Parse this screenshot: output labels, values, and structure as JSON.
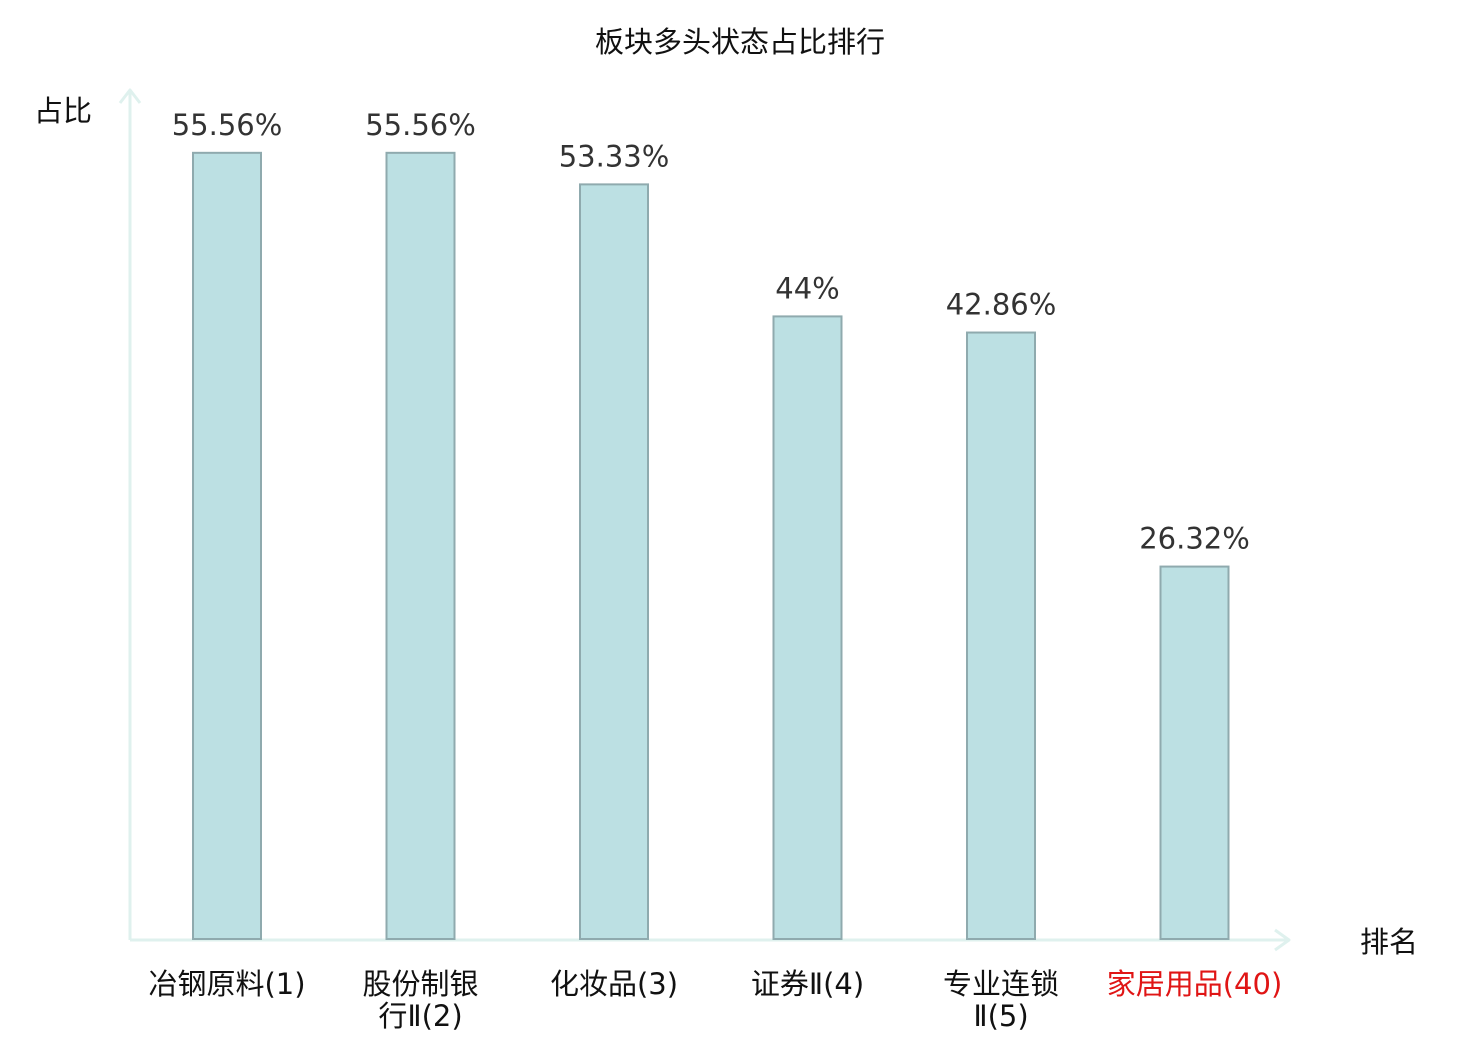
{
  "chart_data": {
    "type": "bar",
    "title": "板块多头状态占比排行",
    "xlabel": "排名",
    "ylabel": "占比",
    "ylim": [
      0,
      60
    ],
    "grid": false,
    "legend": "none",
    "categories": [
      {
        "lines": [
          "冶钢原料(1)"
        ],
        "highlight": false
      },
      {
        "lines": [
          "股份制银",
          "行Ⅱ(2)"
        ],
        "highlight": false
      },
      {
        "lines": [
          "化妆品(3)"
        ],
        "highlight": false
      },
      {
        "lines": [
          "证券Ⅱ(4)"
        ],
        "highlight": false
      },
      {
        "lines": [
          "专业连锁",
          "Ⅱ(5)"
        ],
        "highlight": false
      },
      {
        "lines": [
          "家居用品(40)"
        ],
        "highlight": true
      }
    ],
    "values": [
      55.56,
      55.56,
      53.33,
      44,
      42.86,
      26.32
    ],
    "value_labels": [
      "55.56%",
      "55.56%",
      "53.33%",
      "44%",
      "42.86%",
      "26.32%"
    ],
    "colors": {
      "bar_fill": "#bce0e3",
      "bar_stroke": "#8faaae",
      "axis": "#dff1ee",
      "label_text": "#333333",
      "category_text": "#111111",
      "highlight_text": "#e01515",
      "title_text": "#111111"
    }
  }
}
